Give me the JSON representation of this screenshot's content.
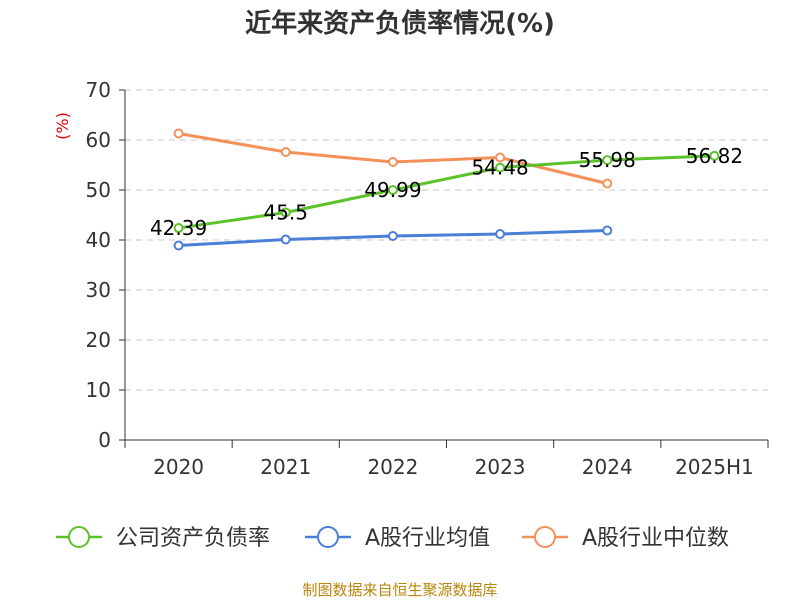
{
  "chart_data": {
    "type": "line",
    "title": "近年来资产负债率情况(%)",
    "ylabel": "(%)",
    "xlabel": "",
    "ylim": [
      0,
      70
    ],
    "yticks": [
      0,
      10,
      20,
      30,
      40,
      50,
      60,
      70
    ],
    "grid": true,
    "legend_position": "bottom",
    "categories": [
      "2020",
      "2021",
      "2022",
      "2023",
      "2024",
      "2025H1"
    ],
    "series": [
      {
        "name": "公司资产负债率",
        "color": "#5cc22a",
        "values": [
          42.39,
          45.5,
          49.99,
          54.48,
          55.98,
          56.82
        ],
        "labels": [
          "42.39",
          "45.5",
          "49.99",
          "54.48",
          "55.98",
          "56.82"
        ]
      },
      {
        "name": "A股行业均值",
        "color": "#4a7fd8",
        "values": [
          38.9,
          40.1,
          40.8,
          41.2,
          41.9,
          null
        ],
        "labels": []
      },
      {
        "name": "A股行业中位数",
        "color": "#f5905a",
        "values": [
          61.3,
          57.6,
          55.6,
          56.5,
          51.3,
          null
        ],
        "labels": []
      }
    ],
    "source": "制图数据来自恒生聚源数据库"
  }
}
